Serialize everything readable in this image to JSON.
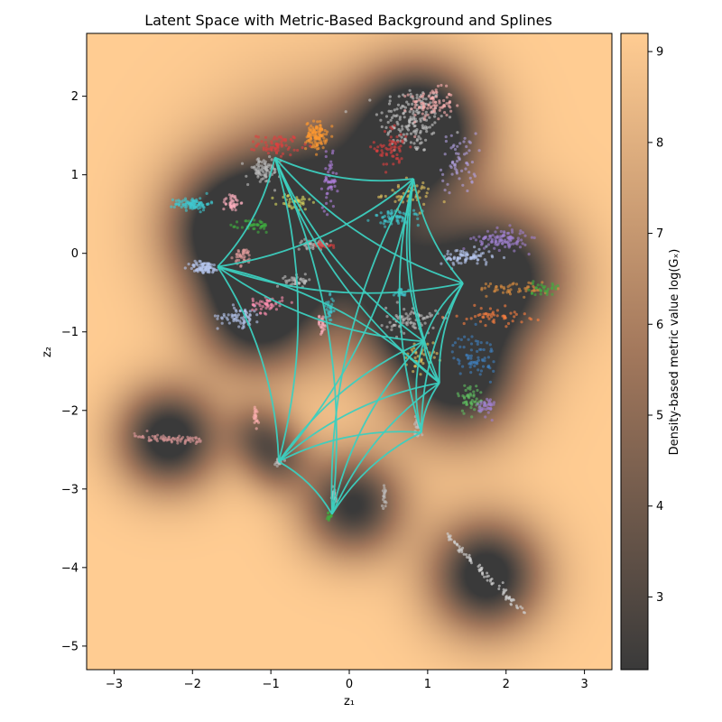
{
  "chart_data": {
    "type": "scatter",
    "title": "Latent Space with Metric-Based Background and Splines",
    "xlabel": "z₁",
    "ylabel": "z₂",
    "xlim": [
      -3.35,
      3.35
    ],
    "ylim": [
      -5.3,
      2.8
    ],
    "x_ticks": [
      -3,
      -2,
      -1,
      0,
      1,
      2,
      3
    ],
    "y_ticks": [
      -5,
      -4,
      -3,
      -2,
      -1,
      0,
      1,
      2
    ],
    "background": {
      "colormap": "copper",
      "low_color": "#3a3a3a",
      "mid_color": "#a3785c",
      "high_color": "#ffcc92"
    },
    "colorbar": {
      "label": "Density-based metric value log(Gₓ)",
      "range": [
        2.2,
        9.2
      ],
      "ticks": [
        3,
        4,
        5,
        6,
        7,
        8,
        9
      ]
    },
    "spline_color": "#3ccfbf",
    "spline_nodes": [
      {
        "x": -0.95,
        "y": 1.22
      },
      {
        "x": 0.82,
        "y": 0.95
      },
      {
        "x": -1.68,
        "y": -0.17
      },
      {
        "x": 1.45,
        "y": -0.38
      },
      {
        "x": 0.95,
        "y": -1.12
      },
      {
        "x": 1.15,
        "y": -1.65
      },
      {
        "x": 0.92,
        "y": -2.28
      },
      {
        "x": -0.9,
        "y": -2.65
      },
      {
        "x": -0.22,
        "y": -3.32
      }
    ],
    "spline_edges": [
      [
        0,
        1
      ],
      [
        0,
        2
      ],
      [
        0,
        3
      ],
      [
        0,
        4
      ],
      [
        0,
        5
      ],
      [
        0,
        7
      ],
      [
        0,
        8
      ],
      [
        1,
        2
      ],
      [
        1,
        3
      ],
      [
        1,
        4
      ],
      [
        1,
        5
      ],
      [
        1,
        6
      ],
      [
        1,
        7
      ],
      [
        1,
        8
      ],
      [
        2,
        3
      ],
      [
        2,
        4
      ],
      [
        2,
        5
      ],
      [
        2,
        7
      ],
      [
        3,
        4
      ],
      [
        3,
        5
      ],
      [
        3,
        6
      ],
      [
        4,
        5
      ],
      [
        4,
        6
      ],
      [
        4,
        7
      ],
      [
        4,
        8
      ],
      [
        5,
        6
      ],
      [
        5,
        7
      ],
      [
        5,
        8
      ],
      [
        6,
        7
      ],
      [
        6,
        8
      ],
      [
        7,
        8
      ]
    ],
    "clusters": [
      {
        "x": 0.8,
        "y": 1.7,
        "sx": 0.38,
        "sy": 0.4,
        "color": "#c8c8c8",
        "n": 170
      },
      {
        "x": 1.05,
        "y": 1.9,
        "sx": 0.25,
        "sy": 0.18,
        "color": "#ffb3b3",
        "n": 90
      },
      {
        "x": 0.55,
        "y": 1.35,
        "sx": 0.2,
        "sy": 0.25,
        "color": "#e04040",
        "n": 60
      },
      {
        "x": 1.4,
        "y": 1.15,
        "sx": 0.2,
        "sy": 0.35,
        "color": "#b0a0e0",
        "n": 60
      },
      {
        "x": 0.75,
        "y": 0.75,
        "sx": 0.3,
        "sy": 0.15,
        "color": "#e8c860",
        "n": 50
      },
      {
        "x": 0.6,
        "y": 0.45,
        "sx": 0.28,
        "sy": 0.08,
        "color": "#40c8d0",
        "n": 60
      },
      {
        "x": -0.42,
        "y": 1.5,
        "sx": 0.12,
        "sy": 0.16,
        "color": "#ff9a30",
        "n": 110
      },
      {
        "x": -0.9,
        "y": 1.38,
        "sx": 0.25,
        "sy": 0.12,
        "color": "#e04040",
        "n": 70
      },
      {
        "x": -1.1,
        "y": 1.05,
        "sx": 0.2,
        "sy": 0.15,
        "color": "#c0c0c0",
        "n": 80
      },
      {
        "x": -0.25,
        "y": 0.9,
        "sx": 0.08,
        "sy": 0.3,
        "color": "#b080e0",
        "n": 50
      },
      {
        "x": -0.7,
        "y": 0.65,
        "sx": 0.2,
        "sy": 0.1,
        "color": "#dcdc60",
        "n": 40
      },
      {
        "x": -2.0,
        "y": 0.63,
        "sx": 0.2,
        "sy": 0.07,
        "color": "#40c8d0",
        "n": 90
      },
      {
        "x": -1.5,
        "y": 0.65,
        "sx": 0.1,
        "sy": 0.1,
        "color": "#ffb0c0",
        "n": 40
      },
      {
        "x": -1.2,
        "y": 0.35,
        "sx": 0.18,
        "sy": 0.08,
        "color": "#40b040",
        "n": 40
      },
      {
        "x": -1.85,
        "y": -0.18,
        "sx": 0.18,
        "sy": 0.07,
        "color": "#b8c8f0",
        "n": 80
      },
      {
        "x": -1.35,
        "y": -0.05,
        "sx": 0.1,
        "sy": 0.1,
        "color": "#e8a0a0",
        "n": 40
      },
      {
        "x": -1.4,
        "y": -0.8,
        "sx": 0.25,
        "sy": 0.12,
        "color": "#b8c8f0",
        "n": 70
      },
      {
        "x": -1.05,
        "y": -0.65,
        "sx": 0.18,
        "sy": 0.1,
        "color": "#ff90b0",
        "n": 50
      },
      {
        "x": -0.65,
        "y": -0.35,
        "sx": 0.15,
        "sy": 0.06,
        "color": "#c0c0c0",
        "n": 40
      },
      {
        "x": -0.45,
        "y": 0.12,
        "sx": 0.2,
        "sy": 0.05,
        "color": "#c0c0c0",
        "n": 40
      },
      {
        "x": -0.35,
        "y": 0.1,
        "sx": 0.12,
        "sy": 0.04,
        "color": "#e04040",
        "n": 25
      },
      {
        "x": -0.25,
        "y": -0.72,
        "sx": 0.05,
        "sy": 0.15,
        "color": "#40c8d0",
        "n": 30
      },
      {
        "x": -0.35,
        "y": -0.9,
        "sx": 0.05,
        "sy": 0.1,
        "color": "#ffb0c0",
        "n": 25
      },
      {
        "x": 1.95,
        "y": 0.18,
        "sx": 0.3,
        "sy": 0.12,
        "color": "#a080d0",
        "n": 110
      },
      {
        "x": 1.5,
        "y": -0.05,
        "sx": 0.3,
        "sy": 0.1,
        "color": "#b8c8f0",
        "n": 80
      },
      {
        "x": 2.1,
        "y": -0.45,
        "sx": 0.4,
        "sy": 0.08,
        "color": "#e09040",
        "n": 50
      },
      {
        "x": 2.45,
        "y": -0.45,
        "sx": 0.2,
        "sy": 0.07,
        "color": "#40b040",
        "n": 30
      },
      {
        "x": 1.85,
        "y": -0.8,
        "sx": 0.4,
        "sy": 0.1,
        "color": "#ff8040",
        "n": 50
      },
      {
        "x": 1.6,
        "y": -1.3,
        "sx": 0.25,
        "sy": 0.25,
        "color": "#4080c0",
        "n": 70
      },
      {
        "x": 1.55,
        "y": -1.85,
        "sx": 0.15,
        "sy": 0.18,
        "color": "#60c060",
        "n": 50
      },
      {
        "x": 1.75,
        "y": -1.95,
        "sx": 0.1,
        "sy": 0.12,
        "color": "#a080d0",
        "n": 40
      },
      {
        "x": 0.8,
        "y": -0.85,
        "sx": 0.3,
        "sy": 0.15,
        "color": "#c0c0c0",
        "n": 80
      },
      {
        "x": 0.9,
        "y": -1.3,
        "sx": 0.2,
        "sy": 0.15,
        "color": "#e8c860",
        "n": 40
      },
      {
        "x": 0.65,
        "y": -0.5,
        "sx": 0.08,
        "sy": 0.05,
        "color": "#40c8d0",
        "n": 20
      },
      {
        "x": 0.88,
        "y": -2.2,
        "sx": 0.05,
        "sy": 0.12,
        "color": "#c0c0c0",
        "n": 25
      },
      {
        "x": -1.2,
        "y": -2.1,
        "sx": 0.04,
        "sy": 0.15,
        "color": "#ffb0b0",
        "n": 20
      },
      {
        "x": -0.9,
        "y": -2.65,
        "sx": 0.05,
        "sy": 0.04,
        "color": "#c0c0c0",
        "n": 20
      },
      {
        "x": -0.2,
        "y": -3.1,
        "sx": 0.04,
        "sy": 0.1,
        "color": "#c0c0c0",
        "n": 30
      },
      {
        "x": -0.25,
        "y": -3.35,
        "sx": 0.03,
        "sy": 0.05,
        "color": "#40b040",
        "n": 12
      },
      {
        "x": 0.45,
        "y": -3.1,
        "sx": 0.02,
        "sy": 0.12,
        "color": "#c0c0c0",
        "n": 18
      }
    ],
    "streaks": [
      {
        "x0": -2.75,
        "y0": -2.33,
        "x1": -1.9,
        "y1": -2.38,
        "width": 0.05,
        "color": "#d09090",
        "n": 90
      },
      {
        "x0": 1.25,
        "y0": -3.6,
        "x1": 2.25,
        "y1": -4.6,
        "width": 0.04,
        "color": "#d0d0d0",
        "n": 90
      }
    ],
    "density_centers": [
      {
        "x": -0.3,
        "y": 0.4,
        "s": 0.9,
        "w": 1.0
      },
      {
        "x": 0.9,
        "y": 1.6,
        "s": 0.55,
        "w": 1.0
      },
      {
        "x": 1.9,
        "y": -0.3,
        "s": 0.6,
        "w": 0.9
      },
      {
        "x": 1.4,
        "y": -1.6,
        "s": 0.55,
        "w": 0.8
      },
      {
        "x": -1.5,
        "y": 0.3,
        "s": 0.55,
        "w": 0.8
      },
      {
        "x": -1.2,
        "y": -0.8,
        "s": 0.5,
        "w": 0.7
      },
      {
        "x": 0.9,
        "y": -0.8,
        "s": 0.5,
        "w": 0.7
      },
      {
        "x": -2.3,
        "y": -2.35,
        "s": 0.45,
        "w": 0.85
      },
      {
        "x": 0.05,
        "y": -3.2,
        "s": 0.45,
        "w": 0.75
      },
      {
        "x": 1.75,
        "y": -4.1,
        "s": 0.5,
        "w": 0.85
      },
      {
        "x": -1.15,
        "y": -2.3,
        "s": 0.3,
        "w": 0.4
      },
      {
        "x": -0.9,
        "y": -2.65,
        "s": 0.3,
        "w": 0.4
      }
    ]
  }
}
